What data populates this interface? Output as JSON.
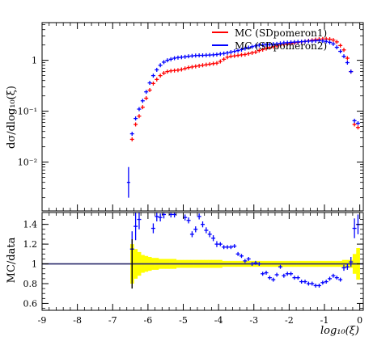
{
  "chart_data": [
    {
      "type": "scatter",
      "panel": "main",
      "ylabel": "dσ/dlog₁₀(ξ)",
      "y_scale": "log",
      "xlim": [
        -9,
        0.1
      ],
      "ylim": [
        0.0011,
        5.5
      ],
      "y_ticks": [
        {
          "value": 1,
          "label": "1"
        },
        {
          "value": 0.1,
          "label": "10⁻¹"
        },
        {
          "value": 0.01,
          "label": "10⁻²"
        }
      ],
      "legend_position": "top-right",
      "series": [
        {
          "name": "MC (SDpomeron1)",
          "color": "#ff0000",
          "x": [
            -6.45,
            -6.35,
            -6.25,
            -6.15,
            -6.05,
            -5.95,
            -5.85,
            -5.75,
            -5.65,
            -5.55,
            -5.45,
            -5.35,
            -5.25,
            -5.15,
            -5.05,
            -4.95,
            -4.85,
            -4.75,
            -4.65,
            -4.55,
            -4.45,
            -4.35,
            -4.25,
            -4.15,
            -4.05,
            -3.95,
            -3.85,
            -3.75,
            -3.65,
            -3.55,
            -3.45,
            -3.35,
            -3.25,
            -3.15,
            -3.05,
            -2.95,
            -2.85,
            -2.75,
            -2.65,
            -2.55,
            -2.45,
            -2.35,
            -2.25,
            -2.15,
            -2.05,
            -1.95,
            -1.85,
            -1.75,
            -1.65,
            -1.55,
            -1.45,
            -1.35,
            -1.25,
            -1.15,
            -1.05,
            -0.95,
            -0.85,
            -0.75,
            -0.65,
            -0.55,
            -0.45,
            -0.35,
            -0.25,
            -0.15,
            -0.05
          ],
          "y": [
            0.028,
            0.055,
            0.08,
            0.12,
            0.18,
            0.26,
            0.35,
            0.42,
            0.5,
            0.56,
            0.6,
            0.62,
            0.63,
            0.64,
            0.66,
            0.69,
            0.72,
            0.74,
            0.76,
            0.78,
            0.8,
            0.82,
            0.84,
            0.86,
            0.88,
            0.95,
            1.05,
            1.15,
            1.2,
            1.22,
            1.25,
            1.28,
            1.3,
            1.35,
            1.4,
            1.45,
            1.55,
            1.62,
            1.7,
            1.78,
            1.85,
            1.92,
            2.0,
            2.05,
            2.1,
            2.15,
            2.2,
            2.25,
            2.3,
            2.35,
            2.42,
            2.48,
            2.55,
            2.6,
            2.62,
            2.63,
            2.6,
            2.5,
            2.3,
            1.95,
            1.6,
            1.1,
            0.6,
            0.055,
            0.048
          ]
        },
        {
          "name": "MC (SDpomeron2)",
          "color": "#0000ff",
          "x": [
            -6.45,
            -6.35,
            -6.25,
            -6.15,
            -6.05,
            -5.95,
            -5.85,
            -5.75,
            -5.65,
            -5.55,
            -5.45,
            -5.35,
            -5.25,
            -5.15,
            -5.05,
            -4.95,
            -4.85,
            -4.75,
            -4.65,
            -4.55,
            -4.45,
            -4.35,
            -4.25,
            -4.15,
            -4.05,
            -3.95,
            -3.85,
            -3.75,
            -3.65,
            -3.55,
            -3.45,
            -3.35,
            -3.25,
            -3.15,
            -3.05,
            -2.95,
            -2.85,
            -2.75,
            -2.65,
            -2.55,
            -2.45,
            -2.35,
            -2.25,
            -2.15,
            -2.05,
            -1.95,
            -1.85,
            -1.75,
            -1.65,
            -1.55,
            -1.45,
            -1.35,
            -1.25,
            -1.15,
            -1.05,
            -0.95,
            -0.85,
            -0.75,
            -0.65,
            -0.55,
            -0.45,
            -0.35,
            -0.25,
            -0.15,
            -0.05
          ],
          "y": [
            0.036,
            0.072,
            0.11,
            0.16,
            0.24,
            0.36,
            0.5,
            0.65,
            0.8,
            0.92,
            1.0,
            1.05,
            1.1,
            1.13,
            1.15,
            1.17,
            1.2,
            1.22,
            1.24,
            1.25,
            1.25,
            1.26,
            1.27,
            1.28,
            1.3,
            1.33,
            1.36,
            1.4,
            1.45,
            1.5,
            1.55,
            1.62,
            1.7,
            1.78,
            1.85,
            1.92,
            1.98,
            2.0,
            2.02,
            2.05,
            2.08,
            2.1,
            2.15,
            2.2,
            2.22,
            2.25,
            2.28,
            2.3,
            2.32,
            2.35,
            2.38,
            2.4,
            2.42,
            2.43,
            2.4,
            2.35,
            2.25,
            2.1,
            1.8,
            1.5,
            1.2,
            0.9,
            0.6,
            0.065,
            0.058
          ]
        }
      ],
      "isolated_point": {
        "x": -6.55,
        "y": 0.004,
        "y_low": 0.002,
        "y_high": 0.008,
        "color": "#0000ff"
      }
    },
    {
      "type": "scatter",
      "panel": "ratio",
      "ylabel": "MC/data",
      "xlabel": "log₁₀(ξ)",
      "xlim": [
        -9,
        0.1
      ],
      "ylim": [
        0.53,
        1.52
      ],
      "x_ticks": [
        -9,
        -8,
        -7,
        -6,
        -5,
        -4,
        -3,
        -2,
        -1,
        0
      ],
      "x_tick_labels": [
        "-9",
        "-8",
        "-7",
        "-6",
        "-5",
        "-4",
        "-3",
        "-2",
        "-1",
        "0"
      ],
      "y_ticks": [
        0.6,
        0.8,
        1,
        1.2,
        1.4
      ],
      "y_tick_labels": [
        "0.6",
        "0.8",
        "1",
        "1.2",
        "1.4"
      ],
      "reference_line": 1.0,
      "uncertainty_band": {
        "color": "#ffff00",
        "x": [
          -6.45,
          -6.35,
          -6.25,
          -6.15,
          -6.05,
          -5.95,
          -5.85,
          -5.75,
          -5.65,
          -5.55,
          -5.45,
          -5.35,
          -5.25,
          -5.15,
          -5.05,
          -4.95,
          -4.85,
          -4.75,
          -4.65,
          -4.55,
          -4.45,
          -4.35,
          -4.25,
          -4.15,
          -4.05,
          -3.95,
          -3.85,
          -3.75,
          -3.65,
          -3.55,
          -3.45,
          -3.35,
          -3.25,
          -3.15,
          -3.05,
          -2.95,
          -2.85,
          -2.75,
          -2.65,
          -2.55,
          -2.45,
          -2.35,
          -2.25,
          -2.15,
          -2.05,
          -1.95,
          -1.85,
          -1.75,
          -1.65,
          -1.55,
          -1.45,
          -1.35,
          -1.25,
          -1.15,
          -1.05,
          -0.95,
          -0.85,
          -0.75,
          -0.65,
          -0.55,
          -0.45,
          -0.35,
          -0.25,
          -0.15,
          -0.05
        ],
        "half_width": [
          0.2,
          0.15,
          0.12,
          0.09,
          0.08,
          0.07,
          0.06,
          0.06,
          0.05,
          0.05,
          0.05,
          0.05,
          0.05,
          0.04,
          0.04,
          0.04,
          0.04,
          0.04,
          0.04,
          0.04,
          0.04,
          0.04,
          0.04,
          0.04,
          0.04,
          0.04,
          0.03,
          0.03,
          0.03,
          0.03,
          0.03,
          0.03,
          0.03,
          0.03,
          0.03,
          0.03,
          0.03,
          0.03,
          0.03,
          0.03,
          0.03,
          0.03,
          0.03,
          0.03,
          0.03,
          0.03,
          0.03,
          0.03,
          0.03,
          0.03,
          0.03,
          0.03,
          0.03,
          0.03,
          0.03,
          0.03,
          0.03,
          0.03,
          0.03,
          0.03,
          0.04,
          0.04,
          0.04,
          0.1,
          0.16
        ]
      },
      "series": [
        {
          "name": "MC (SDpomeron2)",
          "color": "#0000ff",
          "x": [
            -6.45,
            -6.35,
            -6.25,
            -5.85,
            -5.75,
            -5.65,
            -5.55,
            -5.35,
            -5.25,
            -4.95,
            -4.85,
            -4.75,
            -4.65,
            -4.55,
            -4.45,
            -4.35,
            -4.25,
            -4.15,
            -4.05,
            -3.95,
            -3.85,
            -3.75,
            -3.65,
            -3.55,
            -3.45,
            -3.35,
            -3.25,
            -3.15,
            -3.05,
            -2.95,
            -2.85,
            -2.75,
            -2.65,
            -2.55,
            -2.45,
            -2.35,
            -2.25,
            -2.15,
            -2.05,
            -1.95,
            -1.85,
            -1.75,
            -1.65,
            -1.55,
            -1.45,
            -1.35,
            -1.25,
            -1.15,
            -1.05,
            -0.95,
            -0.85,
            -0.75,
            -0.65,
            -0.55,
            -0.45,
            -0.35,
            -0.25,
            -0.15,
            -0.05
          ],
          "y": [
            1.15,
            1.38,
            1.45,
            1.36,
            1.48,
            1.47,
            1.5,
            1.5,
            1.5,
            1.47,
            1.44,
            1.3,
            1.35,
            1.48,
            1.4,
            1.34,
            1.3,
            1.26,
            1.2,
            1.2,
            1.17,
            1.17,
            1.17,
            1.18,
            1.1,
            1.08,
            1.03,
            1.05,
            1.0,
            1.01,
            1.0,
            0.9,
            0.91,
            0.86,
            0.84,
            0.89,
            0.97,
            0.88,
            0.9,
            0.9,
            0.86,
            0.86,
            0.82,
            0.82,
            0.8,
            0.8,
            0.78,
            0.78,
            0.81,
            0.82,
            0.85,
            0.88,
            0.86,
            0.84,
            0.96,
            0.97,
            1.02,
            1.36,
            1.4
          ],
          "err": [
            0.18,
            0.14,
            0.1,
            0.05,
            0.05,
            0.04,
            0.04,
            0.03,
            0.03,
            0.03,
            0.03,
            0.03,
            0.03,
            0.03,
            0.03,
            0.03,
            0.03,
            0.03,
            0.03,
            0.02,
            0.02,
            0.02,
            0.02,
            0.02,
            0.02,
            0.02,
            0.02,
            0.02,
            0.02,
            0.02,
            0.02,
            0.02,
            0.02,
            0.02,
            0.02,
            0.02,
            0.02,
            0.02,
            0.02,
            0.02,
            0.02,
            0.02,
            0.02,
            0.02,
            0.02,
            0.02,
            0.02,
            0.02,
            0.02,
            0.02,
            0.02,
            0.02,
            0.02,
            0.02,
            0.03,
            0.03,
            0.05,
            0.1,
            0.1
          ]
        }
      ],
      "extra_points": [
        {
          "x": -6.45,
          "y": 1.0,
          "y_low": 0.75,
          "y_high": 1.25,
          "color": "#000000"
        }
      ]
    }
  ]
}
